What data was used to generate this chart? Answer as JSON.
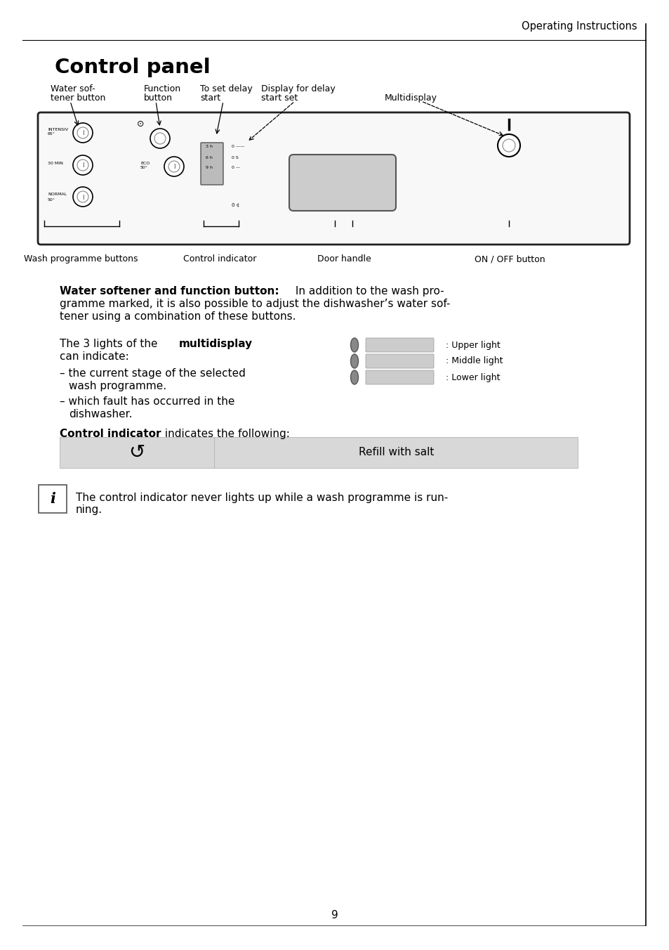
{
  "bg_color": "#ffffff",
  "border_color": "#000000",
  "page_number": "9",
  "header_text": "Operating Instructions",
  "title": "Control panel",
  "label_water_softener_1": "Water sof-",
  "label_water_softener_2": "tener button",
  "label_function_1": "Function",
  "label_function_2": "button",
  "label_delay_start_1": "To set delay",
  "label_delay_start_2": "start",
  "label_display_delay_1": "Display for delay",
  "label_display_delay_2": "start set",
  "label_multidisplay": "Multidisplay",
  "label_wash_prog": "Wash programme buttons",
  "label_control_ind": "Control indicator",
  "label_door_handle": "Door handle",
  "label_on_off": "ON / OFF button",
  "section1_bold": "Water softener and function button:",
  "section1_line1": " In addition to the wash pro-",
  "section1_line2": "gramme marked, it is also possible to adjust the dishwasher’s water sof-",
  "section1_line3": "tener using a combination of these buttons.",
  "section2_intro": "The 3 lights of the ",
  "section2_bold": "multidisplay",
  "section2_can": "can indicate:",
  "section2_bullet1": "– the current stage of the selected",
  "section2_bullet1b": "   wash programme.",
  "section2_bullet2": "– which fault has occurred in the",
  "section2_bullet2b": "   dishwasher.",
  "light_upper": ": Upper light",
  "light_middle": ": Middle light",
  "light_lower": ": Lower light",
  "section3_bold": "Control indicator",
  "section3_text": " indicates the following:",
  "table_text": "Refill with salt",
  "info_text_1": "The control indicator never lights up while a wash programme is run-",
  "info_text_2": "ning.",
  "table_bg": "#d8d8d8",
  "panel_bg": "#f8f8f8",
  "gray_rect": "#cccccc",
  "text_color": "#000000"
}
